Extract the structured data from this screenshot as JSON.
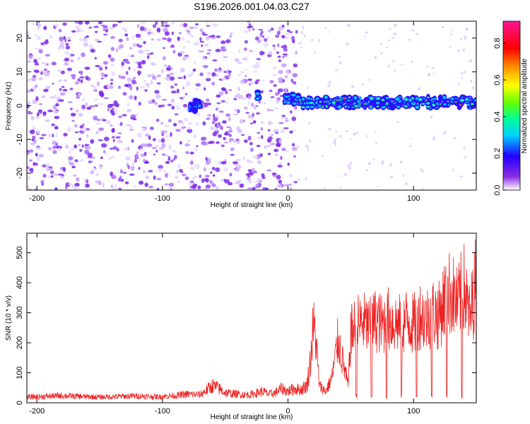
{
  "title": "S196.2026.001.04.03.C27",
  "colors": {
    "snr_line": "#ee2222",
    "spectrogram_noise": "#8a2be2",
    "background": "#ffffff"
  },
  "chart_data": [
    {
      "type": "heatmap",
      "name": "spectrogram",
      "xlabel": "Height of straight line (km)",
      "ylabel": "Frequency (Hz)",
      "xlim": [
        -208,
        150
      ],
      "ylim": [
        -25,
        25
      ],
      "xticks": [
        -200,
        -100,
        0,
        100
      ],
      "yticks": [
        -20,
        -10,
        0,
        10,
        20
      ],
      "xtick_labels": [
        "-200",
        "-100",
        "0",
        "100"
      ],
      "ytick_labels": [
        "-20",
        "-10",
        "0",
        "10",
        "20"
      ],
      "colorbar": {
        "label": "Normalized spectral amplitude",
        "ticks": [
          0.0,
          0.2,
          0.4,
          0.6,
          0.8
        ],
        "tick_labels": [
          "0.0",
          "0.2",
          "0.4",
          "0.6",
          "0.8"
        ],
        "range": [
          0,
          0.92
        ],
        "colormap": "rainbow"
      },
      "features": [
        {
          "description": "diffuse low-amplitude noise",
          "x_range": [
            -208,
            7
          ],
          "freq_range": [
            -25,
            25
          ],
          "amplitude": 0.1
        },
        {
          "description": "signal band near 0 Hz",
          "x_range": [
            -78,
            -70
          ],
          "freq_center": 0,
          "amplitude": 0.3
        },
        {
          "description": "strong signal band near 0-2 Hz",
          "x_range": [
            -3,
            150
          ],
          "freq_center": 1,
          "max_amplitude": 0.9
        }
      ],
      "grid": false
    },
    {
      "type": "line",
      "name": "snr",
      "xlabel": "Height of straight line (km)",
      "ylabel": "SNR (10 * v/v)",
      "xlim": [
        -208,
        150
      ],
      "ylim": [
        0,
        565
      ],
      "xticks": [
        -200,
        -100,
        0,
        100
      ],
      "yticks": [
        0,
        100,
        200,
        300,
        400,
        500
      ],
      "xtick_labels": [
        "-200",
        "-100",
        "0",
        "100"
      ],
      "ytick_labels": [
        "0",
        "100",
        "200",
        "300",
        "400",
        "500"
      ],
      "series": [
        {
          "x": [
            -208,
            -195,
            -180,
            -165,
            -150,
            -135,
            -120,
            -105,
            -90,
            -80,
            -70,
            -60,
            -55,
            -50,
            -40,
            -30,
            -20,
            -15,
            -10,
            -5,
            0,
            5,
            10,
            15,
            18,
            20,
            22,
            25,
            28,
            30,
            35,
            40,
            45,
            48,
            50,
            55,
            60,
            65,
            70,
            75,
            80,
            85,
            90,
            95,
            100,
            105,
            110,
            115,
            120,
            125,
            130,
            135,
            140,
            145,
            150
          ],
          "y": [
            20,
            22,
            25,
            22,
            20,
            22,
            24,
            21,
            25,
            30,
            28,
            60,
            50,
            35,
            30,
            28,
            40,
            30,
            35,
            50,
            40,
            50,
            45,
            60,
            150,
            280,
            240,
            60,
            50,
            40,
            90,
            230,
            120,
            60,
            250,
            280,
            290,
            270,
            300,
            280,
            300,
            290,
            280,
            300,
            280,
            320,
            300,
            330,
            310,
            380,
            400,
            350,
            420,
            300,
            450
          ]
        }
      ],
      "grid": false
    }
  ]
}
